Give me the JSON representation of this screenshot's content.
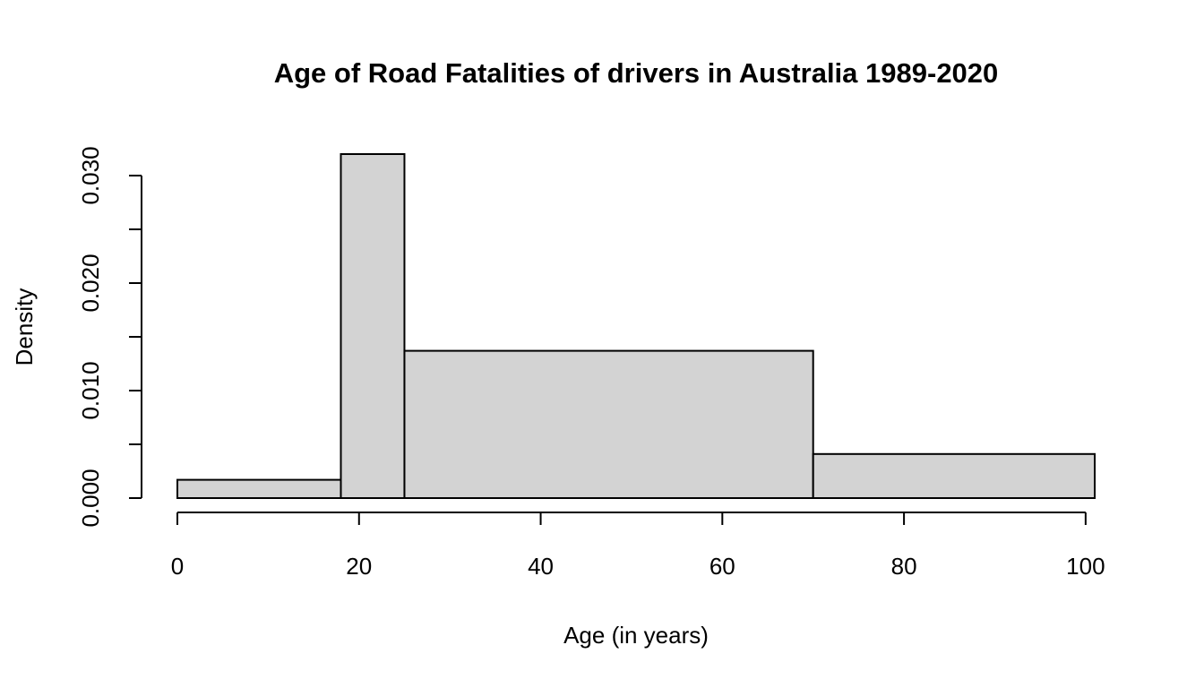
{
  "chart_data": {
    "type": "bar",
    "title": "Age of Road Fatalities of drivers in Australia 1989-2020",
    "xlabel": "Age (in years)",
    "ylabel": "Density",
    "bins": [
      {
        "from": 0,
        "to": 18,
        "density": 0.0017
      },
      {
        "from": 18,
        "to": 25,
        "density": 0.032
      },
      {
        "from": 25,
        "to": 70,
        "density": 0.0137
      },
      {
        "from": 70,
        "to": 101,
        "density": 0.0041
      }
    ],
    "xlim": [
      0,
      101
    ],
    "ylim": [
      0,
      0.032
    ],
    "x_ticks": [
      0,
      20,
      40,
      60,
      80,
      100
    ],
    "x_tick_labels": [
      "0",
      "20",
      "40",
      "60",
      "80",
      "100"
    ],
    "y_ticks": [
      0,
      0.005,
      0.01,
      0.015,
      0.02,
      0.025,
      0.03
    ],
    "y_tick_labels": [
      "0.000",
      "0.010",
      "0.020",
      "0.030"
    ],
    "y_labeled_ticks": [
      0,
      0.01,
      0.02,
      0.03
    ],
    "bar_fill": "#d3d3d3",
    "bar_stroke": "#000000",
    "grid": false
  }
}
